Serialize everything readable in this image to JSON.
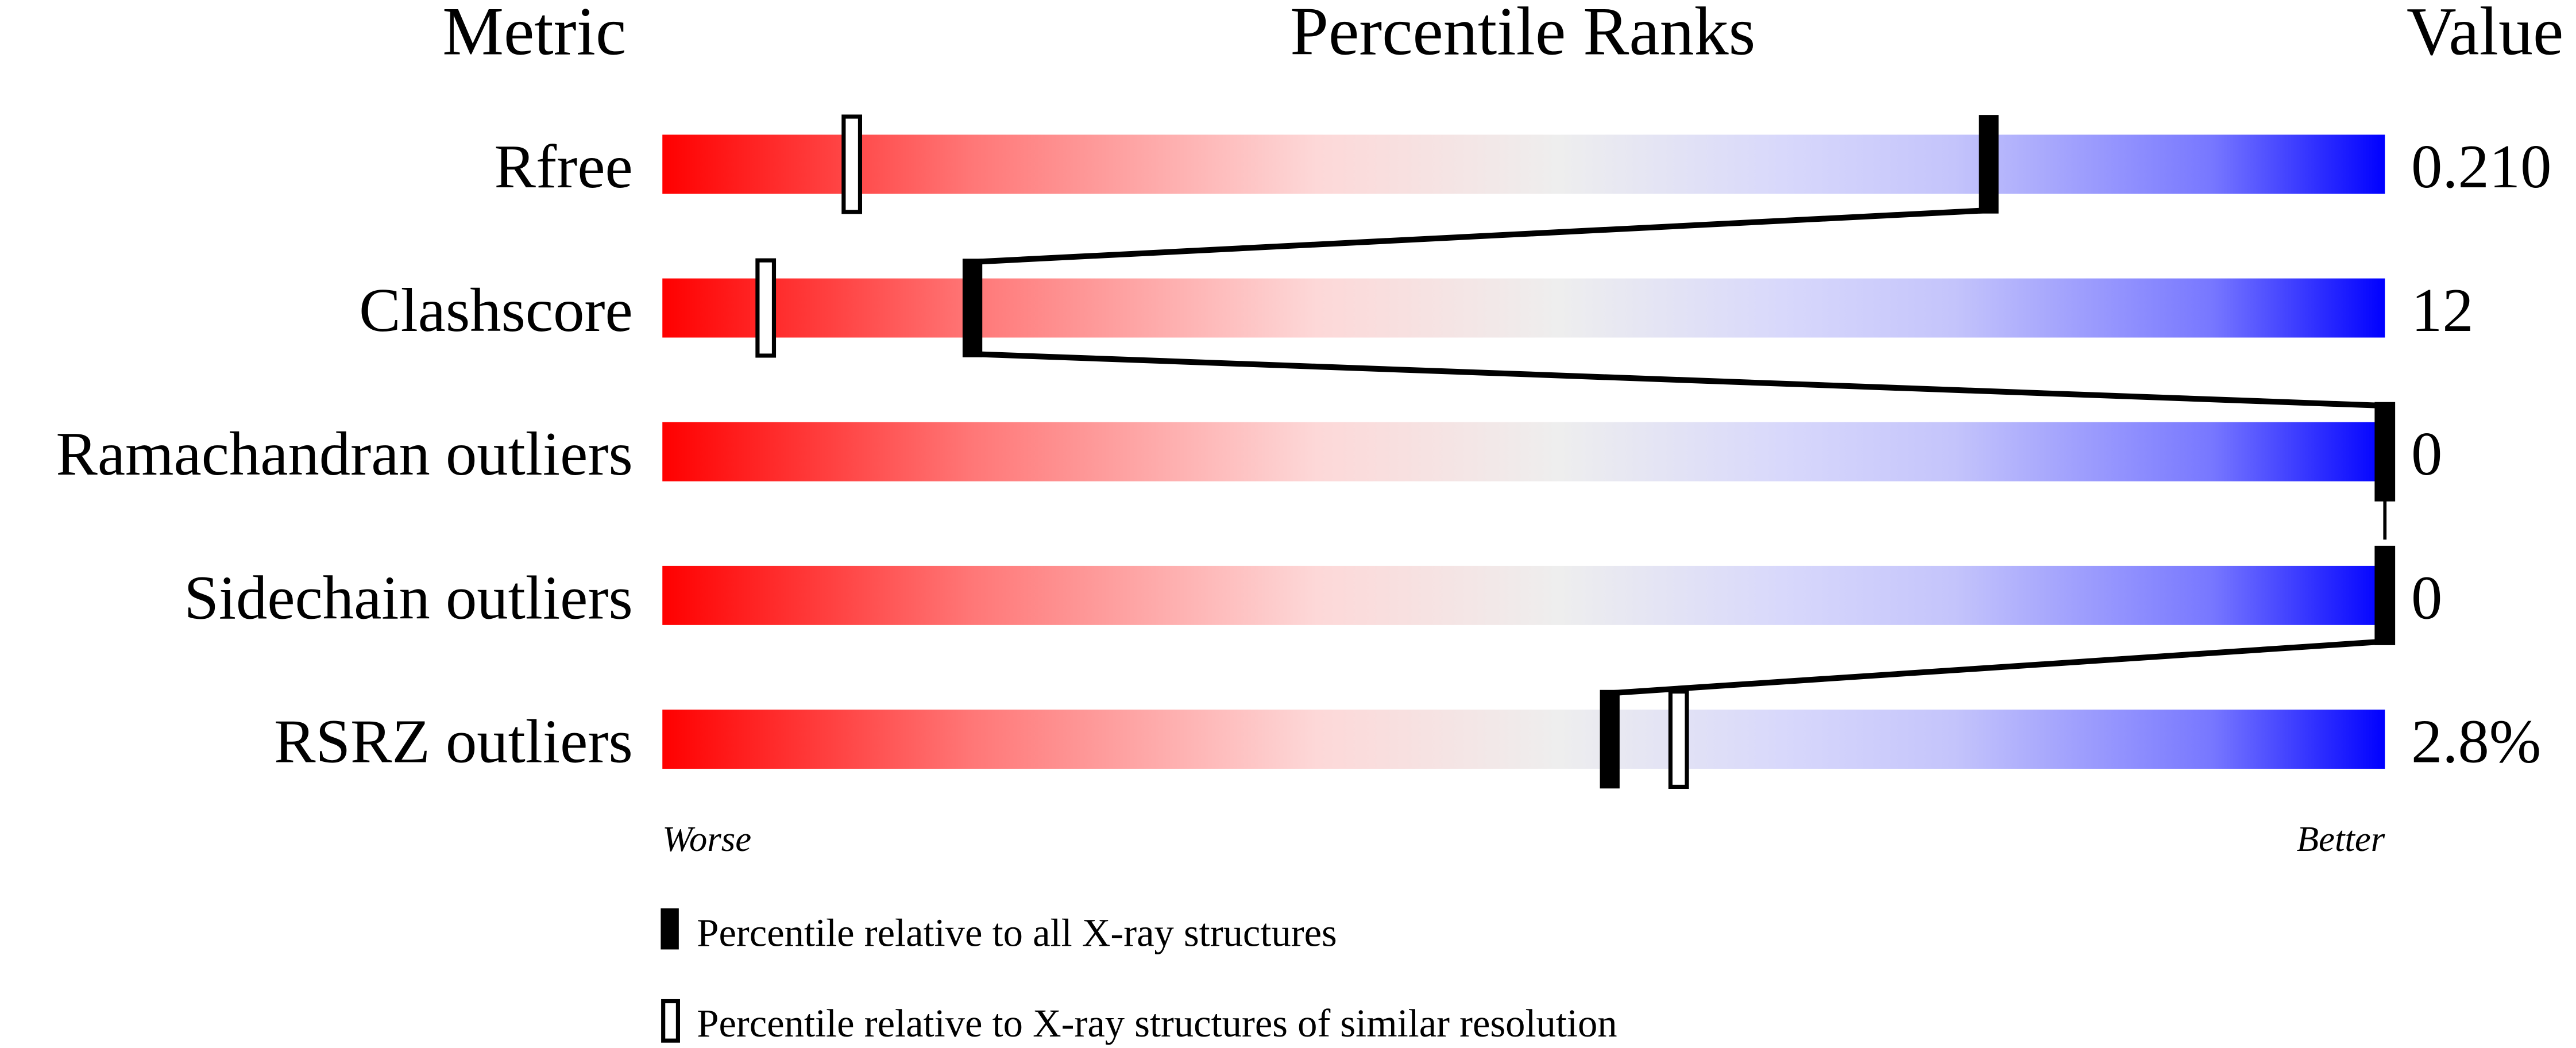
{
  "chart_data": {
    "type": "percentile-slider",
    "headers": {
      "metric": "Metric",
      "ranks": "Percentile Ranks",
      "value": "Value"
    },
    "xlim": [
      0,
      100
    ],
    "axis_labels": {
      "left": "Worse",
      "right": "Better"
    },
    "metrics": [
      {
        "name": "Rfree",
        "value": "0.210",
        "percentile_all": 77,
        "percentile_similar": 11
      },
      {
        "name": "Clashscore",
        "value": "12",
        "percentile_all": 18,
        "percentile_similar": 6
      },
      {
        "name": "Ramachandran outliers",
        "value": "0",
        "percentile_all": 100,
        "percentile_similar": 100
      },
      {
        "name": "Sidechain outliers",
        "value": "0",
        "percentile_all": 100,
        "percentile_similar": 100
      },
      {
        "name": "RSRZ outliers",
        "value": "2.8%",
        "percentile_all": 55,
        "percentile_similar": 59
      }
    ],
    "legend": {
      "all": "Percentile relative to all X-ray structures",
      "similar": "Percentile relative to X-ray structures of similar resolution"
    },
    "colors": {
      "worse": "#ff0000",
      "middle": "#eeeeee",
      "better": "#0000ff",
      "marker": "#000000"
    }
  }
}
